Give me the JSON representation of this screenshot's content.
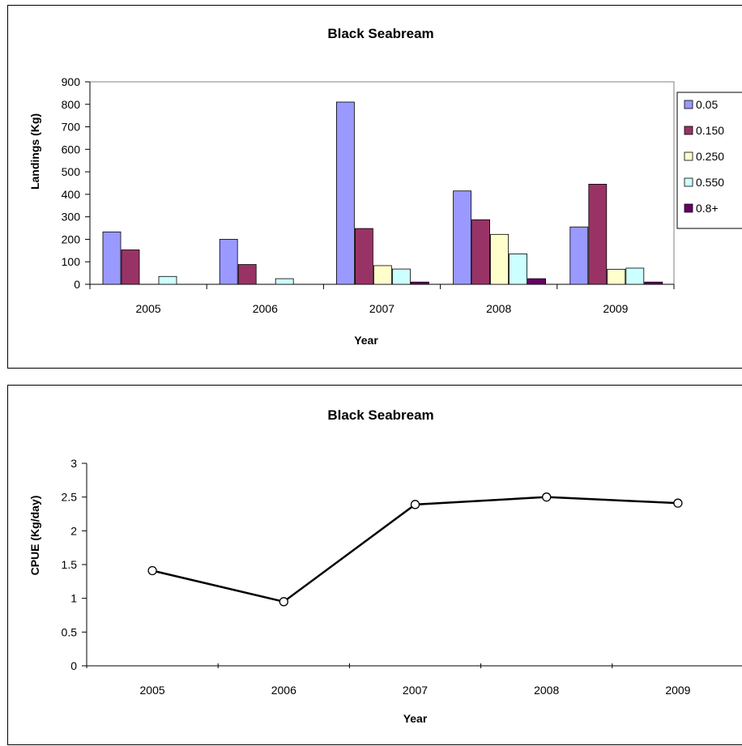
{
  "chart_data": [
    {
      "type": "bar",
      "title": "Black Seabream",
      "xlabel": "Year",
      "ylabel": "Landings (Kg)",
      "ylim": [
        0,
        900
      ],
      "yticks": [
        0,
        100,
        200,
        300,
        400,
        500,
        600,
        700,
        800,
        900
      ],
      "categories": [
        "2005",
        "2006",
        "2007",
        "2008",
        "2009"
      ],
      "grid": false,
      "legend": "right",
      "series": [
        {
          "name": "0.05",
          "color": "#9999ff",
          "values": [
            233,
            200,
            810,
            415,
            255
          ]
        },
        {
          "name": "0.150",
          "color": "#993366",
          "values": [
            153,
            88,
            248,
            287,
            445
          ]
        },
        {
          "name": "0.250",
          "color": "#ffffcc",
          "values": [
            0,
            0,
            83,
            222,
            67
          ]
        },
        {
          "name": "0.550",
          "color": "#ccffff",
          "values": [
            35,
            25,
            68,
            135,
            72
          ]
        },
        {
          "name": "0.8+",
          "color": "#660066",
          "values": [
            0,
            0,
            10,
            25,
            10
          ]
        }
      ]
    },
    {
      "type": "line",
      "title": "Black Seabream",
      "xlabel": "Year",
      "ylabel": "CPUE (Kg/day)",
      "ylim": [
        0,
        3
      ],
      "yticks": [
        "0",
        "0.5",
        "1",
        "1.5",
        "2",
        "2.5",
        "3"
      ],
      "categories": [
        "2005",
        "2006",
        "2007",
        "2008",
        "2009"
      ],
      "grid": false,
      "series": [
        {
          "color": "#000000",
          "values": [
            1.41,
            0.95,
            2.39,
            2.5,
            2.41
          ]
        }
      ]
    }
  ]
}
